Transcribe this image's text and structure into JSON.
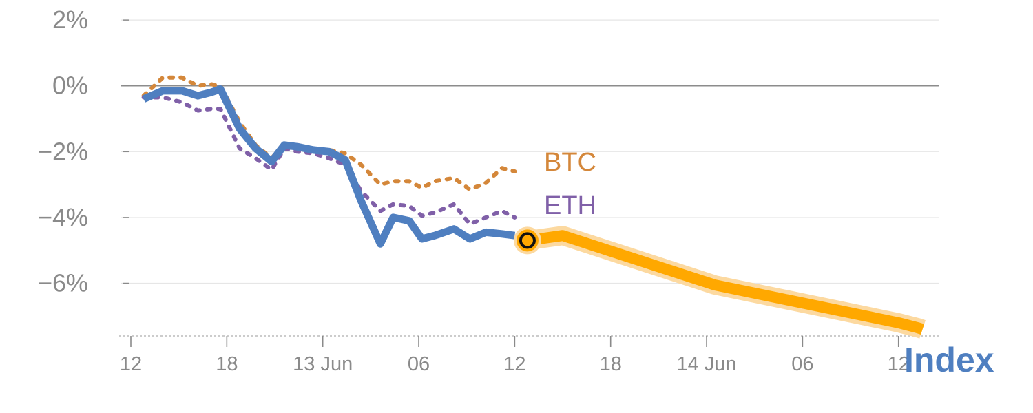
{
  "chart_data": {
    "type": "line",
    "ylim": [
      -7.6,
      2.4
    ],
    "yticks": [
      2,
      0,
      -2,
      -4,
      -6
    ],
    "ytick_labels": [
      "2%",
      "0%",
      "−2%",
      "−4%",
      "−6%"
    ],
    "xticks": [
      0,
      6,
      12,
      18,
      24,
      30,
      36,
      42,
      48,
      54
    ],
    "xtick_labels": [
      "12",
      "18",
      "13 Jun",
      "06",
      "12",
      "18",
      "14 Jun",
      "06",
      "12"
    ],
    "xlim": [
      0,
      51.5
    ],
    "grid": true,
    "zero_line": true,
    "corner_label": "Index",
    "colors": {
      "index": "#4f7fc0",
      "btc": "#d4873a",
      "eth": "#8060a8",
      "forecast": "#ffa800",
      "forecast_halo": "#fcd9a0",
      "grid": "#e6e6e6",
      "zero": "#8c8c8c",
      "tick": "#8a8a8a"
    },
    "series": [
      {
        "key": "index",
        "x": [
          0.8,
          2,
          3.2,
          4.2,
          5,
          5.6,
          6.8,
          7.8,
          8.8,
          9.6,
          10.4,
          11.4,
          12.4,
          13.4,
          14.4,
          15.6,
          16.4,
          17.4,
          18.2,
          19,
          20.2,
          21.2,
          22.2,
          23.2,
          24
        ],
        "y": [
          -0.4,
          -0.15,
          -0.15,
          -0.3,
          -0.2,
          -0.1,
          -1.3,
          -1.9,
          -2.3,
          -1.8,
          -1.85,
          -1.95,
          -2.0,
          -2.25,
          -3.5,
          -4.8,
          -4.0,
          -4.1,
          -4.65,
          -4.55,
          -4.35,
          -4.65,
          -4.45,
          -4.5,
          -4.55
        ]
      },
      {
        "key": "btc",
        "name": "BTC",
        "x": [
          0.8,
          2,
          3.2,
          4.2,
          5,
          5.6,
          6.8,
          7.8,
          8.8,
          9.6,
          10.4,
          11.4,
          12.4,
          13.4,
          14.4,
          15.6,
          16.4,
          17.4,
          18.2,
          19,
          20.2,
          21.2,
          22.2,
          23.2,
          24
        ],
        "y": [
          -0.3,
          0.25,
          0.25,
          0.0,
          0.05,
          0.0,
          -1.1,
          -1.8,
          -2.2,
          -1.75,
          -1.8,
          -1.9,
          -1.95,
          -2.05,
          -2.4,
          -3.0,
          -2.9,
          -2.9,
          -3.1,
          -2.9,
          -2.8,
          -3.15,
          -2.95,
          -2.5,
          -2.6
        ]
      },
      {
        "key": "eth",
        "name": "ETH",
        "x": [
          0.8,
          2,
          3.2,
          4.2,
          5,
          5.6,
          6.8,
          7.8,
          8.8,
          9.6,
          10.4,
          11.4,
          12.4,
          13.4,
          14.4,
          15.6,
          16.4,
          17.4,
          18.2,
          19,
          20.2,
          21.2,
          22.2,
          23.2,
          24
        ],
        "y": [
          -0.35,
          -0.35,
          -0.5,
          -0.75,
          -0.7,
          -0.7,
          -1.9,
          -2.2,
          -2.55,
          -1.9,
          -2.0,
          -2.05,
          -2.2,
          -2.4,
          -3.2,
          -3.8,
          -3.6,
          -3.65,
          -3.95,
          -3.85,
          -3.6,
          -4.2,
          -4.0,
          -3.8,
          -4.0
        ]
      },
      {
        "key": "forecast",
        "x": [
          24.8,
          27,
          36.5,
          48,
          49.2,
          49.5
        ],
        "y": [
          -4.7,
          -4.55,
          -6.05,
          -7.2,
          -7.35,
          -7.4
        ]
      }
    ],
    "marker": {
      "x": 24.8,
      "y": -4.7
    }
  }
}
